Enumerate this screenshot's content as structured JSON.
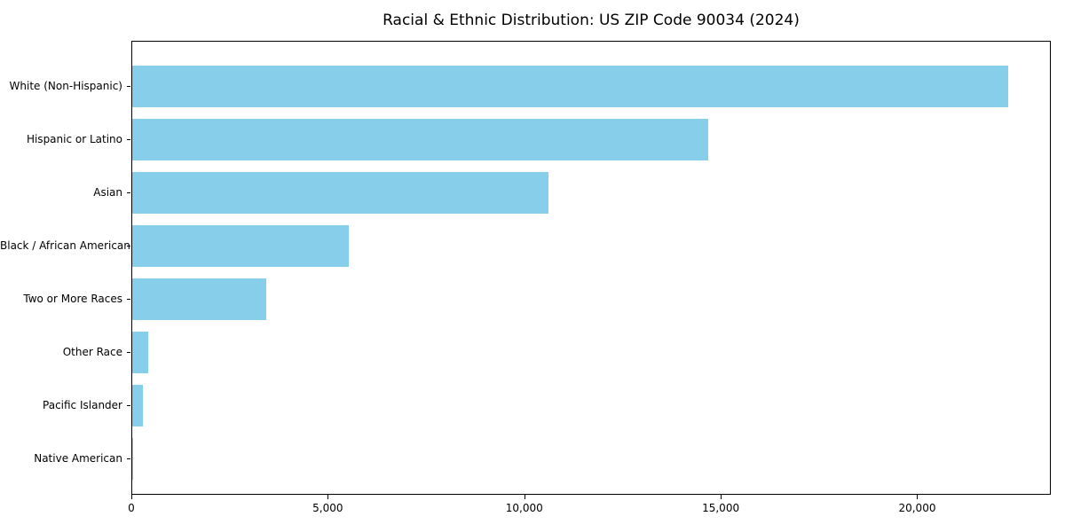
{
  "chart_data": {
    "type": "bar",
    "orientation": "horizontal",
    "title": "Racial & Ethnic Distribution: US ZIP Code 90034 (2024)",
    "categories": [
      "White (Non-Hispanic)",
      "Hispanic or Latino",
      "Asian",
      "Black / African American",
      "Two or More Races",
      "Other Race",
      "Pacific Islander",
      "Native American"
    ],
    "values": [
      22300,
      14650,
      10600,
      5500,
      3400,
      400,
      270,
      30
    ],
    "xlabel": "",
    "ylabel": "",
    "xlim": [
      0,
      23400
    ],
    "xticks": [
      0,
      5000,
      10000,
      15000,
      20000
    ],
    "xtick_labels": [
      "0",
      "5,000",
      "10,000",
      "15,000",
      "20,000"
    ],
    "bar_color": "#87CEEB",
    "grid": false,
    "legend": null,
    "background": "#FFFFFF"
  }
}
